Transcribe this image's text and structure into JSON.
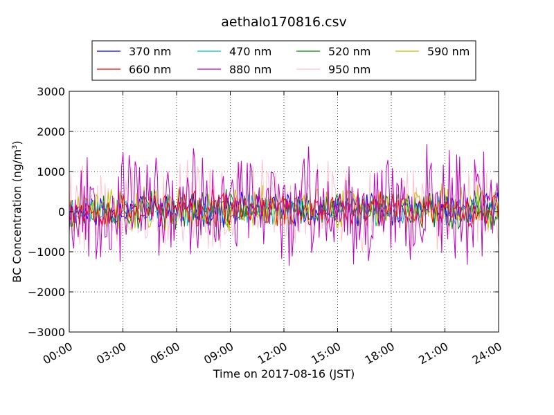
{
  "chart_data": {
    "type": "line",
    "title": "aethalo170816.csv",
    "xlabel": "Time on 2017-08-16 (JST)",
    "ylabel_prefix": "BC Concentration (ng/m",
    "ylabel_exp": "3",
    "ylabel_suffix": ")",
    "xlim": [
      0,
      24
    ],
    "ylim": [
      -3000,
      3000
    ],
    "x_ticks": [
      0,
      3,
      6,
      9,
      12,
      15,
      18,
      21,
      24
    ],
    "x_tick_labels": [
      "00:00",
      "03:00",
      "06:00",
      "09:00",
      "12:00",
      "15:00",
      "18:00",
      "21:00",
      "24:00"
    ],
    "y_ticks": [
      -3000,
      -2000,
      -1000,
      0,
      1000,
      2000,
      3000
    ],
    "y_tick_labels": [
      "−3000",
      "−2000",
      "−1000",
      "0",
      "1000",
      "2000",
      "3000"
    ],
    "grid": true,
    "legend_position": "top",
    "series": [
      {
        "name": "370 nm",
        "color": "#0000ff",
        "amp": 320,
        "seed": 11
      },
      {
        "name": "470 nm",
        "color": "#00bfbf",
        "amp": 300,
        "seed": 23
      },
      {
        "name": "520 nm",
        "color": "#008000",
        "amp": 380,
        "seed": 37
      },
      {
        "name": "590 nm",
        "color": "#bfbf00",
        "amp": 450,
        "seed": 41
      },
      {
        "name": "660 nm",
        "color": "#ff0000",
        "amp": 360,
        "seed": 53
      },
      {
        "name": "880 nm",
        "color": "#bf00bf",
        "amp": 1100,
        "seed": 67
      },
      {
        "name": "950 nm",
        "color": "#ffc0cb",
        "amp": 900,
        "seed": 79
      }
    ],
    "points_per_series": 288
  }
}
